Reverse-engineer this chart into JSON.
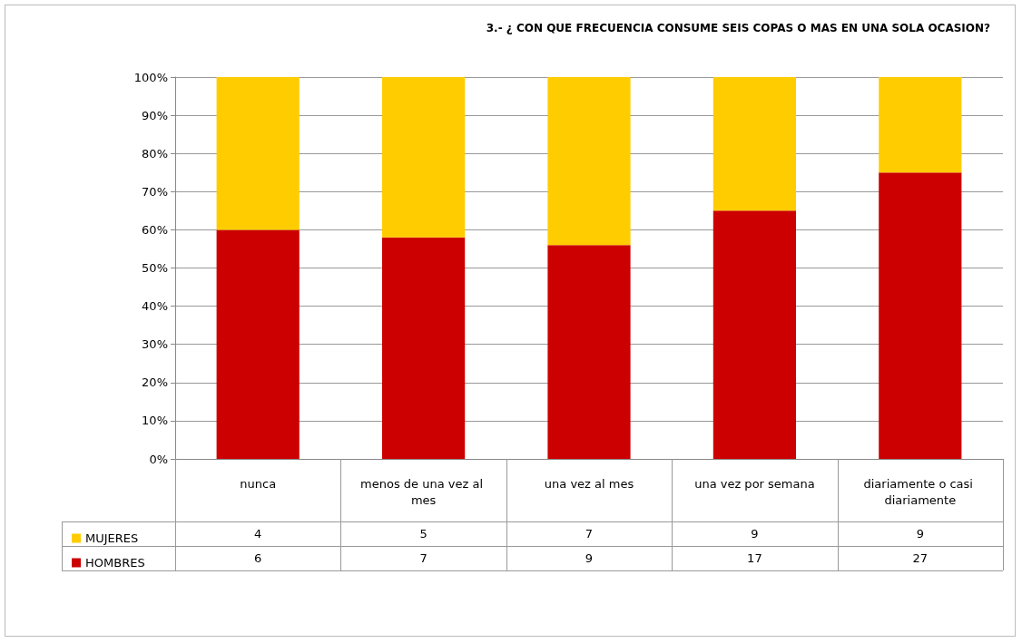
{
  "chart_data": {
    "type": "bar",
    "title": "3.- ¿ CON QUE FRECUENCIA CONSUME SEIS COPAS O MAS EN UNA SOLA OCASION?",
    "categories": [
      "nunca",
      "menos de una vez al mes",
      "una vez al mes",
      "una vez por semana",
      "diariamente o casi diariamente"
    ],
    "stacked": true,
    "series": [
      {
        "name": "HOMBRES",
        "color": "#cc0000",
        "values": [
          60,
          58,
          56,
          65,
          75
        ]
      },
      {
        "name": "MUJERES",
        "color": "#ffcc00",
        "values": [
          40,
          42,
          44,
          35,
          25
        ]
      }
    ],
    "ylim": [
      0,
      100
    ],
    "yticks": [
      {
        "value": 0,
        "label": "0%"
      },
      {
        "value": 10,
        "label": "10%"
      },
      {
        "value": 20,
        "label": "20%"
      },
      {
        "value": 30,
        "label": "30%"
      },
      {
        "value": 40,
        "label": "40%"
      },
      {
        "value": 50,
        "label": "50%"
      },
      {
        "value": 60,
        "label": "60%"
      },
      {
        "value": 70,
        "label": "70%"
      },
      {
        "value": 80,
        "label": "80%"
      },
      {
        "value": 90,
        "label": "90%"
      },
      {
        "value": 100,
        "label": "100%"
      }
    ],
    "grid": "y",
    "legend": "bottom left",
    "annotations": [
      "4",
      "5",
      "7",
      "9",
      "9",
      "6",
      "7",
      "9",
      "17",
      "27"
    ]
  }
}
